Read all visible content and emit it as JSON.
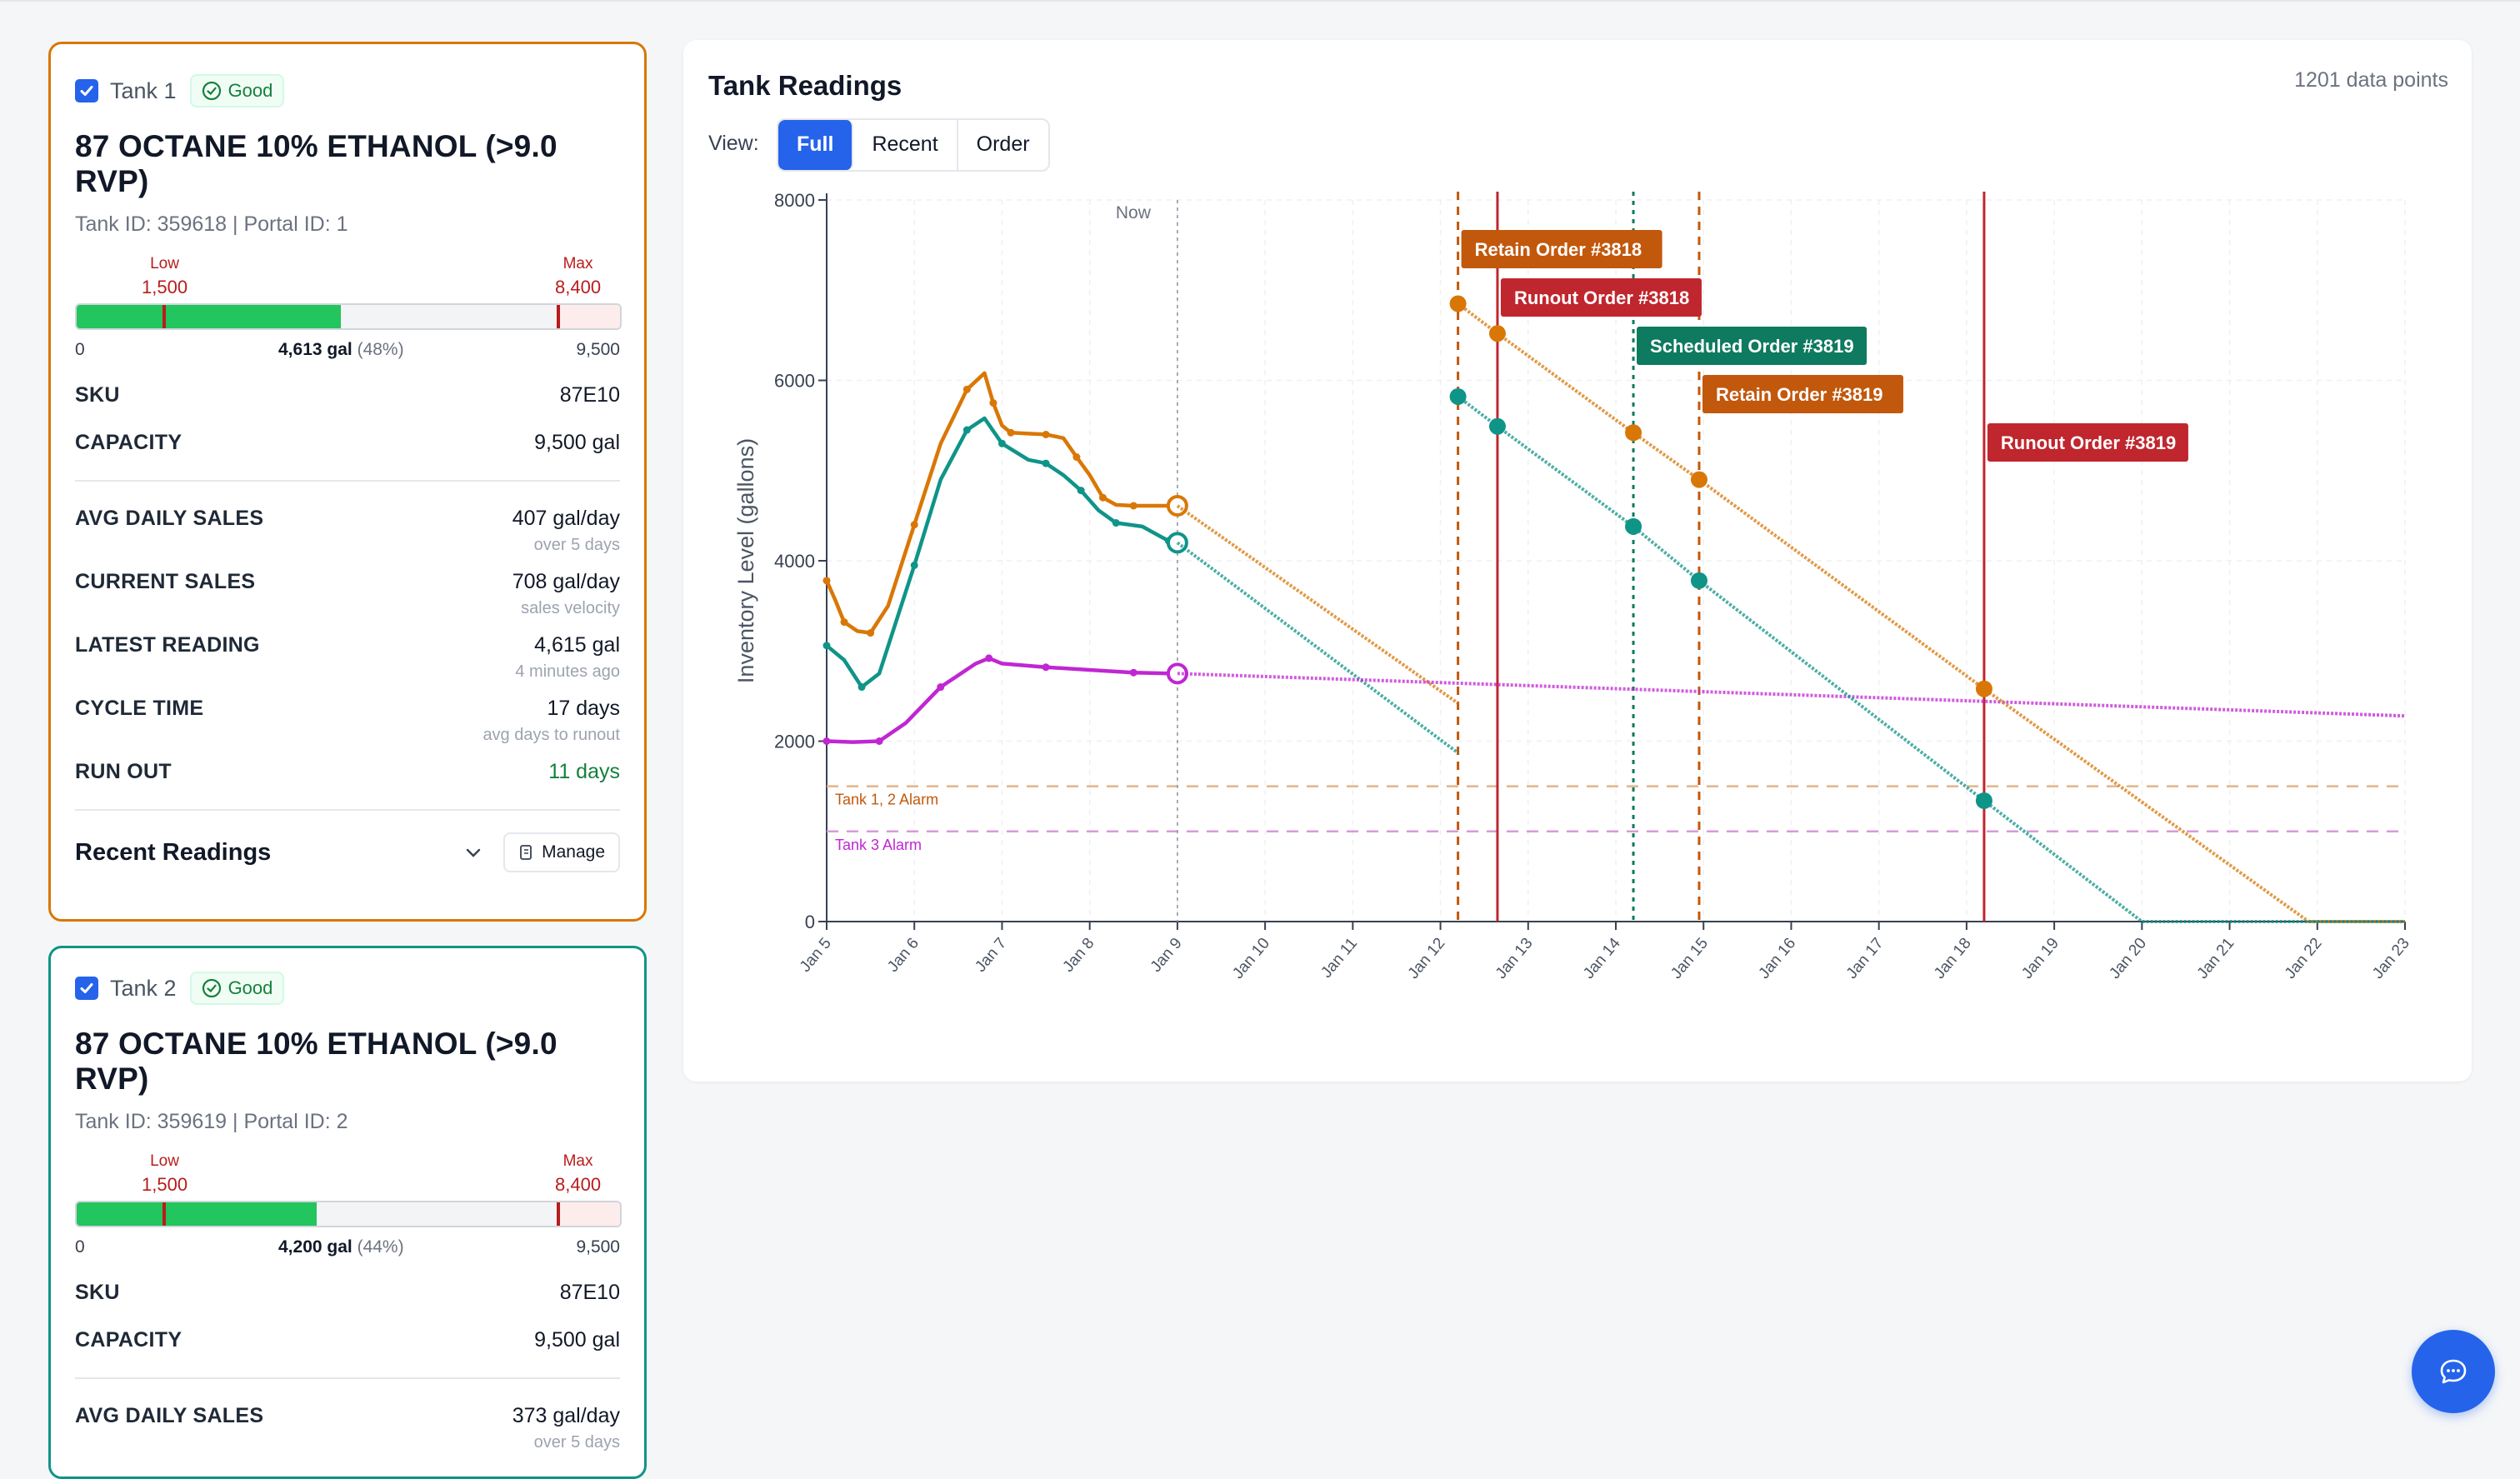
{
  "tanks": [
    {
      "name": "Tank 1",
      "status": "Good",
      "checked": true,
      "product": "87 OCTANE 10% ETHANOL (>9.0 RVP)",
      "ids": "Tank ID: 359618 | Portal ID: 1",
      "color": "#d97706",
      "gauge": {
        "low_label": "Low",
        "low_value": "1,500",
        "max_label": "Max",
        "max_value": "8,400",
        "min": "0",
        "capacity": "9,500",
        "current": "4,613 gal",
        "percent": "(48%)",
        "fill_fraction": 0.4856,
        "low_fraction": 0.1579,
        "max_fraction": 0.8842
      },
      "sku_label": "SKU",
      "sku": "87E10",
      "capacity_label": "CAPACITY",
      "capacity_value": "9,500 gal",
      "avg_label": "AVG DAILY SALES",
      "avg_value": "407 gal/day",
      "avg_sub": "over 5 days",
      "current_label": "CURRENT SALES",
      "current_value": "708 gal/day",
      "current_sub": "sales velocity",
      "latest_label": "LATEST READING",
      "latest_value": "4,615 gal",
      "latest_sub": "4 minutes ago",
      "cycle_label": "CYCLE TIME",
      "cycle_value": "17 days",
      "cycle_sub": "avg days to runout",
      "runout_label": "RUN OUT",
      "runout_value": "11 days",
      "recent_title": "Recent Readings",
      "manage_label": "Manage"
    },
    {
      "name": "Tank 2",
      "status": "Good",
      "checked": true,
      "product": "87 OCTANE 10% ETHANOL (>9.0 RVP)",
      "ids": "Tank ID: 359619 | Portal ID: 2",
      "color": "#0f9488",
      "gauge": {
        "low_label": "Low",
        "low_value": "1,500",
        "max_label": "Max",
        "max_value": "8,400",
        "min": "0",
        "capacity": "9,500",
        "current": "4,200 gal",
        "percent": "(44%)",
        "fill_fraction": 0.4421,
        "low_fraction": 0.1579,
        "max_fraction": 0.8842
      },
      "sku_label": "SKU",
      "sku": "87E10",
      "capacity_label": "CAPACITY",
      "capacity_value": "9,500 gal",
      "avg_label": "AVG DAILY SALES",
      "avg_value": "373 gal/day",
      "avg_sub": "over 5 days"
    }
  ],
  "panel": {
    "title": "Tank Readings",
    "count": "1201 data points",
    "view_label": "View:",
    "views": [
      "Full",
      "Recent",
      "Order"
    ],
    "active_view": "Full"
  },
  "chart_data": {
    "type": "line",
    "ylabel": "Inventory Level (gallons)",
    "xlabel": "",
    "ylim": [
      0,
      8000
    ],
    "yticks": [
      0,
      2000,
      4000,
      6000,
      8000
    ],
    "x_start": "Jan 5",
    "x_end": "Jan 23",
    "xticks": [
      "Jan 5",
      "Jan 6",
      "Jan 7",
      "Jan 8",
      "Jan 9",
      "Jan 10",
      "Jan 11",
      "Jan 12",
      "Jan 13",
      "Jan 14",
      "Jan 15",
      "Jan 16",
      "Jan 17",
      "Jan 18",
      "Jan 19",
      "Jan 20",
      "Jan 21",
      "Jan 22",
      "Jan 23"
    ],
    "grid": true,
    "now_label": "Now",
    "now_x": 9.0,
    "alarms": [
      {
        "label": "Tank 1, 2 Alarm",
        "y": 1500,
        "color": "#e3b48a"
      },
      {
        "label": "Tank 3 Alarm",
        "y": 1000,
        "color": "#d99ad8"
      }
    ],
    "series": [
      {
        "color": "#d97706",
        "history": [
          [
            5.0,
            3780
          ],
          [
            5.1,
            3560
          ],
          [
            5.2,
            3320
          ],
          [
            5.35,
            3220
          ],
          [
            5.5,
            3200
          ],
          [
            5.7,
            3500
          ],
          [
            6.0,
            4400
          ],
          [
            6.3,
            5300
          ],
          [
            6.6,
            5900
          ],
          [
            6.8,
            6080
          ],
          [
            6.9,
            5750
          ],
          [
            7.0,
            5500
          ],
          [
            7.1,
            5420
          ],
          [
            7.3,
            5410
          ],
          [
            7.5,
            5400
          ],
          [
            7.7,
            5360
          ],
          [
            7.85,
            5150
          ],
          [
            8.0,
            4950
          ],
          [
            8.15,
            4700
          ],
          [
            8.3,
            4620
          ],
          [
            8.5,
            4610
          ],
          [
            8.9,
            4610
          ]
        ],
        "projection": [
          [
            9.0,
            4610
          ],
          [
            12.2,
            2420
          ]
        ]
      },
      {
        "color": "#0f9488",
        "history": [
          [
            5.0,
            3060
          ],
          [
            5.2,
            2900
          ],
          [
            5.4,
            2600
          ],
          [
            5.6,
            2750
          ],
          [
            6.0,
            3950
          ],
          [
            6.3,
            4900
          ],
          [
            6.6,
            5450
          ],
          [
            6.8,
            5580
          ],
          [
            7.0,
            5300
          ],
          [
            7.3,
            5120
          ],
          [
            7.5,
            5080
          ],
          [
            7.7,
            4950
          ],
          [
            7.9,
            4780
          ],
          [
            8.1,
            4560
          ],
          [
            8.3,
            4420
          ],
          [
            8.6,
            4380
          ],
          [
            8.9,
            4220
          ]
        ],
        "projection": [
          [
            9.0,
            4200
          ],
          [
            12.2,
            1870
          ]
        ]
      },
      {
        "color": "#c026d3",
        "history": [
          [
            5.0,
            2000
          ],
          [
            5.3,
            1990
          ],
          [
            5.6,
            2000
          ],
          [
            5.9,
            2200
          ],
          [
            6.3,
            2600
          ],
          [
            6.7,
            2860
          ],
          [
            6.85,
            2920
          ],
          [
            7.0,
            2860
          ],
          [
            7.5,
            2820
          ],
          [
            8.0,
            2790
          ],
          [
            8.5,
            2760
          ],
          [
            8.9,
            2750
          ]
        ],
        "projection": [
          [
            9.0,
            2750
          ],
          [
            23.0,
            2280
          ]
        ]
      },
      {
        "color": "#d97706",
        "projection": [
          [
            12.2,
            6850
          ],
          [
            12.65,
            6520
          ],
          [
            14.2,
            5420
          ],
          [
            14.95,
            4900
          ],
          [
            18.2,
            2580
          ],
          [
            21.9,
            0
          ],
          [
            23.0,
            0
          ]
        ],
        "markers": [
          [
            12.2,
            6850
          ],
          [
            12.65,
            6520
          ],
          [
            14.2,
            5420
          ],
          [
            14.95,
            4900
          ],
          [
            18.2,
            2580
          ]
        ]
      },
      {
        "color": "#0f9488",
        "projection": [
          [
            12.2,
            5820
          ],
          [
            12.65,
            5490
          ],
          [
            14.2,
            4380
          ],
          [
            14.95,
            3780
          ],
          [
            18.2,
            1340
          ],
          [
            20.0,
            0
          ],
          [
            23.0,
            0
          ]
        ],
        "markers": [
          [
            12.2,
            5820
          ],
          [
            12.65,
            5490
          ],
          [
            14.2,
            4380
          ],
          [
            14.95,
            3780
          ],
          [
            18.2,
            1340
          ]
        ]
      }
    ],
    "order_lines": [
      {
        "label": "Retain Order #3818",
        "x": 12.2,
        "style": "dashed",
        "color": "#c2580c",
        "box_color": "#c2580c",
        "row": 0
      },
      {
        "label": "Runout Order #3818",
        "x": 12.65,
        "style": "solid",
        "color": "#c0262d",
        "box_color": "#c0262d",
        "row": 1
      },
      {
        "label": "Scheduled Order #3819",
        "x": 14.2,
        "style": "dotted",
        "color": "#0e7a5f",
        "box_color": "#0e7a5f",
        "row": 2
      },
      {
        "label": "Retain Order #3819",
        "x": 14.95,
        "style": "dashed",
        "color": "#c2580c",
        "box_color": "#c2580c",
        "row": 3
      },
      {
        "label": "Runout Order #3819",
        "x": 18.2,
        "style": "solid",
        "color": "#c0262d",
        "box_color": "#c0262d",
        "row": 4
      }
    ]
  },
  "fab": {
    "icon": "chat-icon"
  }
}
